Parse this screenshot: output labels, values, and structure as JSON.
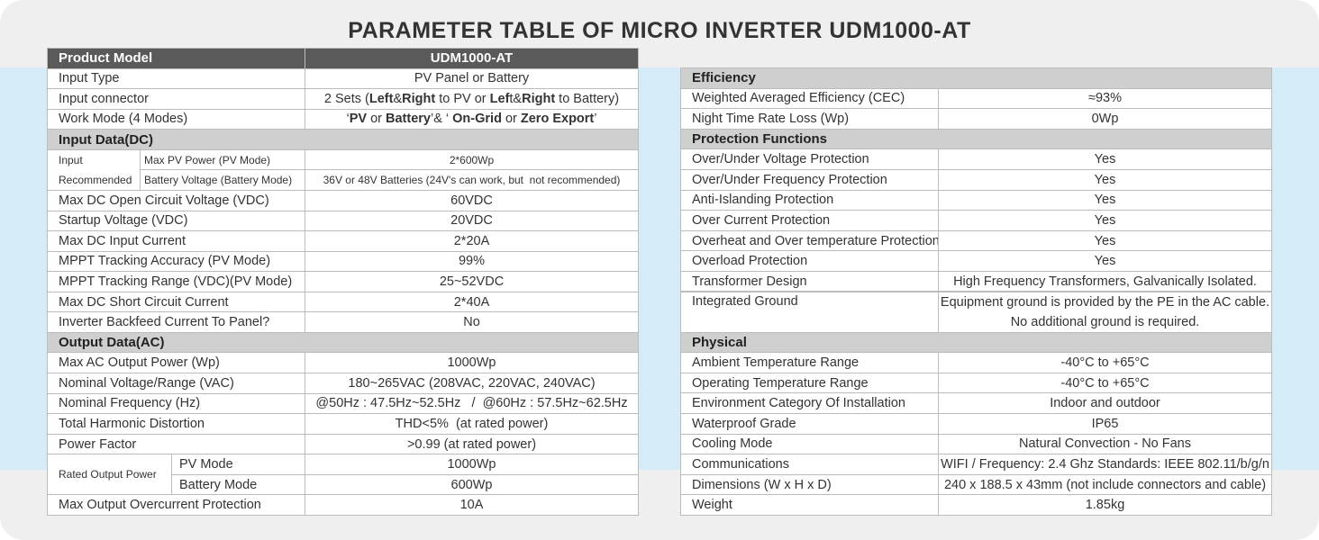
{
  "title": "PARAMETER TABLE OF MICRO INVERTER UDM1000-AT",
  "left": {
    "header": [
      "Product Model",
      "UDM1000-AT"
    ],
    "rows": [
      {
        "label": "Input Type",
        "value": "PV Panel or Battery"
      },
      {
        "label": "Input connector",
        "value": [
          {
            "t": "2 Sets (",
            "b": false
          },
          {
            "t": "Left",
            "b": true
          },
          {
            "t": "&",
            "b": false
          },
          {
            "t": "Right",
            "b": true
          },
          {
            "t": " to PV or ",
            "b": false
          },
          {
            "t": "Lef",
            "b": true
          },
          {
            "t": "t&",
            "b": false
          },
          {
            "t": "Right",
            "b": true
          },
          {
            "t": " to Battery)",
            "b": false
          }
        ]
      },
      {
        "label": "Work Mode (4 Modes)",
        "value": [
          {
            "t": "‘",
            "b": false
          },
          {
            "t": "PV",
            "b": true
          },
          {
            "t": " or ",
            "b": false
          },
          {
            "t": "Battery",
            "b": true
          },
          {
            "t": "’& ‘ ",
            "b": false
          },
          {
            "t": "On-Grid",
            "b": true
          },
          {
            "t": " or ",
            "b": false
          },
          {
            "t": "Zero Export",
            "b": true
          },
          {
            "t": "’",
            "b": false
          }
        ]
      },
      {
        "section": "Input Data(DC)"
      },
      {
        "group_lines": [
          "Input",
          "Recommended"
        ],
        "rows": [
          {
            "label": "Max PV Power (PV Mode)",
            "value": "2*600Wp"
          },
          {
            "label": "Battery Voltage (Battery Mode)",
            "value": "36V or 48V Batteries (24V's can work, but  not recommended)"
          }
        ]
      },
      {
        "label": "Max DC Open Circuit Voltage (VDC)",
        "value": "60VDC"
      },
      {
        "label": "Startup Voltage (VDC)",
        "value": "20VDC"
      },
      {
        "label": "Max DC Input Current",
        "value": "2*20A"
      },
      {
        "label": "MPPT Tracking Accuracy (PV Mode)",
        "value": "99%"
      },
      {
        "label": "MPPT Tracking Range (VDC)(PV Mode)",
        "value": "25~52VDC"
      },
      {
        "label": "Max DC Short Circuit Current",
        "value": "2*40A"
      },
      {
        "label": "Inverter Backfeed Current To Panel?",
        "value": "No"
      },
      {
        "section": "Output Data(AC)"
      },
      {
        "label": "Max AC Output Power (Wp)",
        "value": "1000Wp"
      },
      {
        "label": "Nominal Voltage/Range (VAC)",
        "value": "180~265VAC (208VAC, 220VAC, 240VAC)"
      },
      {
        "label": "Nominal Frequency (Hz)",
        "value": "@50Hz : 47.5Hz~52.5Hz   /  @60Hz : 57.5Hz~62.5Hz"
      },
      {
        "label": "Total Harmonic Distortion",
        "value": "THD<5%  (at rated power)"
      },
      {
        "label": "Power Factor",
        "value": ">0.99 (at rated power)"
      },
      {
        "group": "Rated Output Power",
        "rows": [
          {
            "label": "PV Mode",
            "value": "1000Wp"
          },
          {
            "label": "Battery Mode",
            "value": "600Wp"
          }
        ]
      },
      {
        "label": "Max Output Overcurrent Protection",
        "value": "10A"
      }
    ]
  },
  "right": {
    "rows": [
      {
        "section": "Efficiency"
      },
      {
        "label": "Weighted Averaged Efficiency (CEC)",
        "value": "≈93%"
      },
      {
        "label": "Night Time Rate Loss (Wp)",
        "value": "0Wp"
      },
      {
        "section": "Protection Functions"
      },
      {
        "label": "Over/Under Voltage Protection",
        "value": "Yes"
      },
      {
        "label": "Over/Under Frequency Protection",
        "value": "Yes"
      },
      {
        "label": "Anti-Islanding Protection",
        "value": "Yes"
      },
      {
        "label": "Over Current Protection",
        "value": "Yes"
      },
      {
        "label": "Overheat and Over temperature Protection",
        "value": "Yes"
      },
      {
        "label": "Overload Protection",
        "value": "Yes"
      },
      {
        "label": "Transformer Design",
        "value": "High Frequency Transformers, Galvanically Isolated."
      },
      {
        "label": "Integrated Ground",
        "value_lines": [
          "Equipment ground is provided by the PE in the AC cable.",
          "No additional ground is required."
        ]
      },
      {
        "section": "Physical"
      },
      {
        "label": "Ambient Temperature Range",
        "value": "-40°C to +65°C"
      },
      {
        "label": "Operating Temperature Range",
        "value": "-40°C to +65°C"
      },
      {
        "label": "Environment Category Of Installation",
        "value": "Indoor and outdoor"
      },
      {
        "label": "Waterproof Grade",
        "value": "IP65"
      },
      {
        "label": "Cooling Mode",
        "value": "Natural Convection - No Fans"
      },
      {
        "label": "Communications",
        "value": "WIFI / Frequency: 2.4 Ghz Standards: IEEE 802.11/b/g/n"
      },
      {
        "label": "Dimensions (W x H x D)",
        "value": "240 x 188.5 x 43mm (not include connectors and cable)"
      },
      {
        "label": "Weight",
        "value": "1.85kg"
      }
    ]
  }
}
